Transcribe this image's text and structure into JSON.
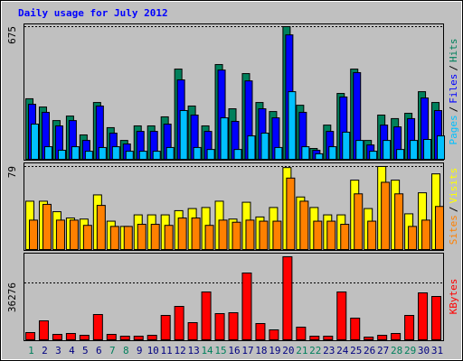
{
  "chart_data": [
    {
      "type": "bar",
      "title": "Daily usage for July 2012",
      "ylim": [
        0,
        675
      ],
      "yticks": [
        675
      ],
      "legend_separator": "/",
      "series": [
        {
          "name": "Pages",
          "color": "#00c0ff",
          "values": [
            179,
            64,
            46,
            64,
            41,
            60,
            64,
            41,
            41,
            41,
            60,
            248,
            60,
            50,
            211,
            50,
            119,
            133,
            60,
            344,
            64,
            28,
            64,
            138,
            96,
            41,
            96,
            50,
            96,
            101,
            119
          ]
        },
        {
          "name": "Files",
          "color": "#0000ff",
          "values": [
            280,
            239,
            170,
            197,
            96,
            271,
            133,
            78,
            142,
            142,
            179,
            404,
            225,
            142,
            454,
            193,
            399,
            257,
            211,
            633,
            239,
            46,
            142,
            317,
            441,
            73,
            174,
            165,
            207,
            312,
            248
          ]
        },
        {
          "name": "Hits",
          "color": "#00805c",
          "values": [
            308,
            266,
            197,
            220,
            124,
            289,
            161,
            96,
            170,
            170,
            216,
            459,
            271,
            170,
            482,
            257,
            436,
            289,
            243,
            675,
            275,
            55,
            174,
            335,
            459,
            96,
            225,
            207,
            234,
            344,
            289
          ]
        }
      ]
    },
    {
      "type": "bar",
      "ylim": [
        0,
        79
      ],
      "yticks": [
        79
      ],
      "legend_separator": "/",
      "series": [
        {
          "name": "Sites",
          "color": "#ff8000",
          "values": [
            28,
            43,
            28,
            28,
            23,
            42,
            22,
            22,
            24,
            24,
            23,
            30,
            30,
            23,
            28,
            26,
            28,
            27,
            27,
            68,
            46,
            27,
            27,
            24,
            53,
            27,
            64,
            53,
            22,
            28,
            41
          ]
        },
        {
          "name": "Visits",
          "color": "#ffff00",
          "values": [
            46,
            46,
            36,
            30,
            29,
            52,
            27,
            22,
            33,
            33,
            33,
            37,
            39,
            40,
            46,
            29,
            45,
            31,
            40,
            78,
            50,
            40,
            33,
            33,
            66,
            39,
            79,
            66,
            34,
            54,
            72
          ]
        }
      ]
    },
    {
      "type": "bar",
      "ylim": [
        0,
        54126
      ],
      "yticks": [
        36276
      ],
      "categories": [
        "1",
        "2",
        "3",
        "4",
        "5",
        "6",
        "7",
        "8",
        "9",
        "10",
        "11",
        "12",
        "13",
        "14",
        "15",
        "16",
        "17",
        "18",
        "19",
        "20",
        "21",
        "22",
        "23",
        "24",
        "25",
        "26",
        "27",
        "28",
        "29",
        "30",
        "31"
      ],
      "category_colors": [
        "#00805c",
        "#000080",
        "#000080",
        "#000080",
        "#000080",
        "#000080",
        "#00805c",
        "#00805c",
        "#000080",
        "#000080",
        "#000080",
        "#000080",
        "#000080",
        "#00805c",
        "#00805c",
        "#000080",
        "#000080",
        "#000080",
        "#000080",
        "#000080",
        "#00805c",
        "#00805c",
        "#000080",
        "#000080",
        "#000080",
        "#000080",
        "#000080",
        "#00805c",
        "#00805c",
        "#000080",
        "#000080"
      ],
      "series": [
        {
          "name": "KBytes",
          "color": "#ff0000",
          "values": [
            4606,
            12092,
            3455,
            4031,
            2879,
            16122,
            3455,
            2303,
            2303,
            2879,
            15547,
            21305,
            10940,
            30517,
            16698,
            17274,
            42609,
            10364,
            6334,
            52974,
            8061,
            2303,
            2303,
            30517,
            13819,
            1727,
            2879,
            4031,
            15547,
            29942,
            27638
          ]
        }
      ]
    }
  ]
}
